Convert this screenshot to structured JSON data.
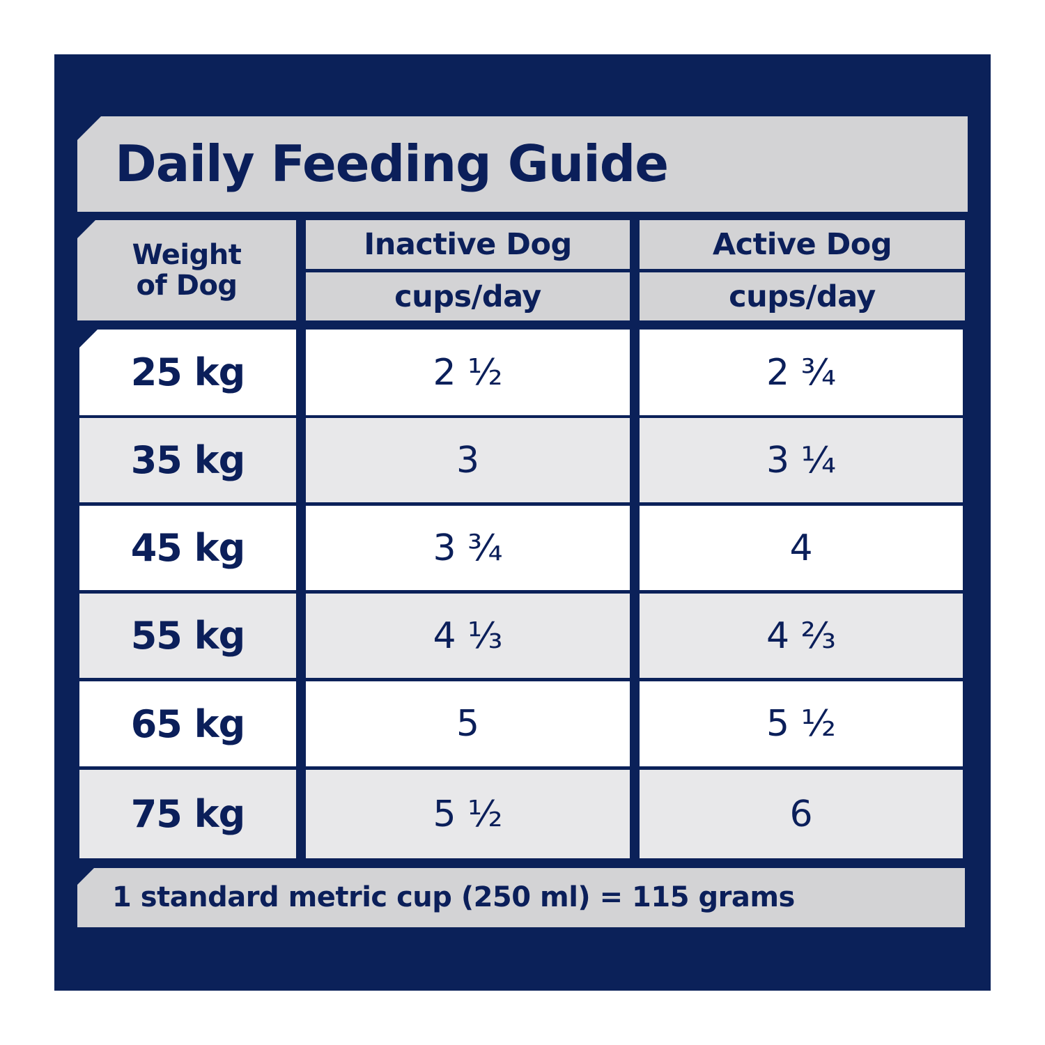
{
  "title": "Daily Feeding Guide",
  "table": {
    "weight_header": [
      "Weight",
      "of Dog"
    ],
    "columns": [
      {
        "group": "Inactive Dog",
        "unit": "cups/day"
      },
      {
        "group": "Active Dog",
        "unit": "cups/day"
      }
    ],
    "rows": [
      {
        "weight": "25 kg",
        "inactive": "2 ½",
        "active": "2 ¾"
      },
      {
        "weight": "35 kg",
        "inactive": "3",
        "active": "3 ¼"
      },
      {
        "weight": "45 kg",
        "inactive": "3 ¾",
        "active": "4"
      },
      {
        "weight": "55 kg",
        "inactive": "4 ⅓",
        "active": "4 ⅔"
      },
      {
        "weight": "65 kg",
        "inactive": "5",
        "active": "5 ½"
      },
      {
        "weight": "75 kg",
        "inactive": "5 ½",
        "active": "6"
      }
    ]
  },
  "footer_note": "1 standard metric cup (250 ml) = 115 grams",
  "colors": {
    "navy": "#0b2159",
    "header_grey": "#d3d3d5",
    "row_light": "#e8e8ea",
    "row_white": "#ffffff"
  }
}
